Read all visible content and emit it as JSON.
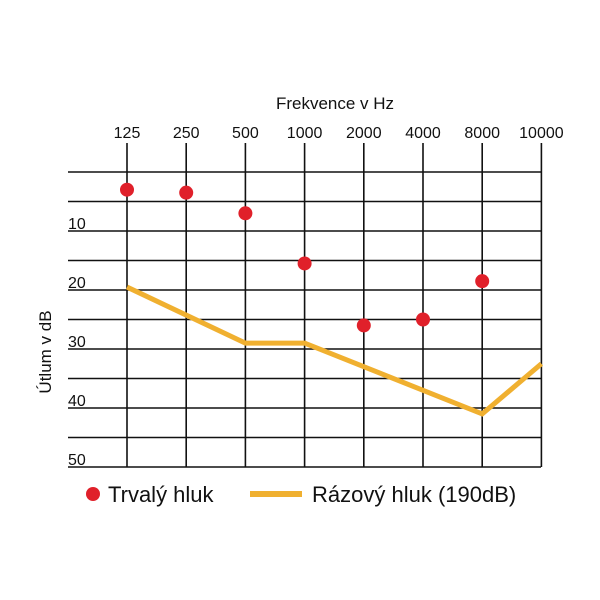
{
  "chart_data": {
    "type": "scatter",
    "xlabel": "Frekvence v Hz",
    "ylabel": "Útlum v dB",
    "categories": [
      "125",
      "250",
      "500",
      "1000",
      "2000",
      "4000",
      "8000",
      "10000"
    ],
    "y_ticks": [
      "10",
      "20",
      "30",
      "40",
      "50"
    ],
    "ylim": [
      0,
      50
    ],
    "y_inverted": true,
    "grid": true,
    "legend_position": "bottom",
    "series": [
      {
        "name": "Trvalý hluk",
        "kind": "points",
        "color": "#e0202a",
        "points": [
          {
            "x": "125",
            "y": 3
          },
          {
            "x": "250",
            "y": 3.5
          },
          {
            "x": "500",
            "y": 7
          },
          {
            "x": "1000",
            "y": 15.5
          },
          {
            "x": "2000",
            "y": 26
          },
          {
            "x": "4000",
            "y": 25
          },
          {
            "x": "8000",
            "y": 18.5
          }
        ]
      },
      {
        "name": "Rázový hluk (190dB)",
        "kind": "line",
        "color": "#f0b030",
        "points": [
          {
            "x": "125",
            "y": 19.5
          },
          {
            "x": "500",
            "y": 29
          },
          {
            "x": "1000",
            "y": 29
          },
          {
            "x": "8000",
            "y": 41
          },
          {
            "x": "10000",
            "y": 32.5
          }
        ]
      }
    ]
  }
}
